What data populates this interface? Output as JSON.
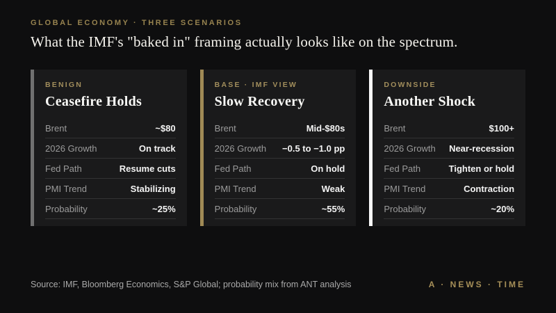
{
  "page": {
    "kicker": "GLOBAL ECONOMY · THREE SCENARIOS",
    "headline": "What the IMF's \"baked in\" framing actually looks like on the spectrum."
  },
  "colors": {
    "background": "#0e0e0f",
    "card_background": "#1a1a1b",
    "gold_accent": "#a28e5c",
    "benign_accent": "#707070",
    "base_accent": "#a08a55",
    "downside_accent": "#f7f7f7"
  },
  "cards": [
    {
      "kicker": "BENIGN",
      "title": "Ceasefire Holds",
      "accent": "#707070",
      "rows": [
        {
          "label": "Brent",
          "value": "~$80"
        },
        {
          "label": "2026 Growth",
          "value": "On track"
        },
        {
          "label": "Fed Path",
          "value": "Resume cuts"
        },
        {
          "label": "PMI Trend",
          "value": "Stabilizing"
        },
        {
          "label": "Probability",
          "value": "~25%"
        }
      ]
    },
    {
      "kicker": "BASE · IMF VIEW",
      "title": "Slow Recovery",
      "accent": "#a08a55",
      "rows": [
        {
          "label": "Brent",
          "value": "Mid-$80s"
        },
        {
          "label": "2026 Growth",
          "value": "−0.5 to −1.0 pp"
        },
        {
          "label": "Fed Path",
          "value": "On hold"
        },
        {
          "label": "PMI Trend",
          "value": "Weak"
        },
        {
          "label": "Probability",
          "value": "~55%"
        }
      ]
    },
    {
      "kicker": "DOWNSIDE",
      "title": "Another Shock",
      "accent": "#f7f7f7",
      "rows": [
        {
          "label": "Brent",
          "value": "$100+"
        },
        {
          "label": "2026 Growth",
          "value": "Near-recession"
        },
        {
          "label": "Fed Path",
          "value": "Tighten or hold"
        },
        {
          "label": "PMI Trend",
          "value": "Contraction"
        },
        {
          "label": "Probability",
          "value": "~20%"
        }
      ]
    }
  ],
  "footer": {
    "source": "Source: IMF, Bloomberg Economics, S&P Global; probability mix from ANT analysis",
    "brand": "A · NEWS · TIME"
  }
}
